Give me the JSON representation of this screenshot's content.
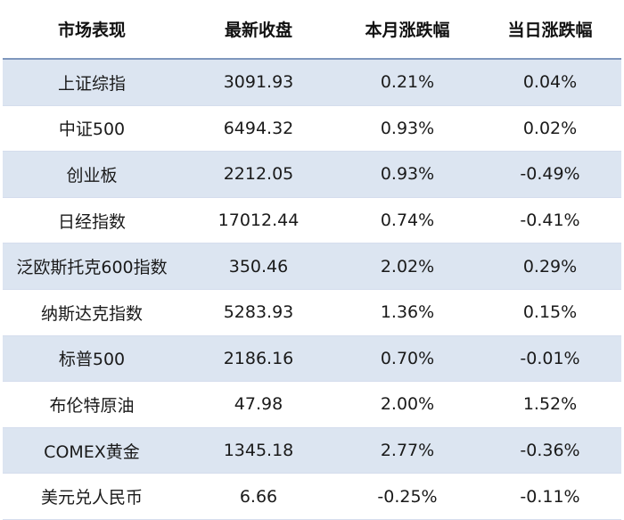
{
  "header": {
    "market": "市场表现",
    "close": "最新收盘",
    "month_change": "本月涨跌幅",
    "day_change": "当日涨跌幅"
  },
  "rows": [
    {
      "name": "上证综指",
      "close": "3091.93",
      "month": "0.21%",
      "day": "0.04%"
    },
    {
      "name": "中证500",
      "close": "6494.32",
      "month": "0.93%",
      "day": "0.02%"
    },
    {
      "name": "创业板",
      "close": "2212.05",
      "month": "0.93%",
      "day": "-0.49%"
    },
    {
      "name": "日经指数",
      "close": "17012.44",
      "month": "0.74%",
      "day": "-0.41%"
    },
    {
      "name": "泛欧斯托克600指数",
      "close": "350.46",
      "month": "2.02%",
      "day": "0.29%"
    },
    {
      "name": "纳斯达克指数",
      "close": "5283.93",
      "month": "1.36%",
      "day": "0.15%"
    },
    {
      "name": "标普500",
      "close": "2186.16",
      "month": "0.70%",
      "day": "-0.01%"
    },
    {
      "name": "布伦特原油",
      "close": "47.98",
      "month": "2.00%",
      "day": "1.52%"
    },
    {
      "name": "COMEX黄金",
      "close": "1345.18",
      "month": "2.77%",
      "day": "-0.36%"
    },
    {
      "name": "美元兑人民币",
      "close": "6.66",
      "month": "-0.25%",
      "day": "-0.11%"
    }
  ],
  "colors": {
    "shaded_row": "#dce5f1",
    "header_rule": "#7f97bd"
  }
}
